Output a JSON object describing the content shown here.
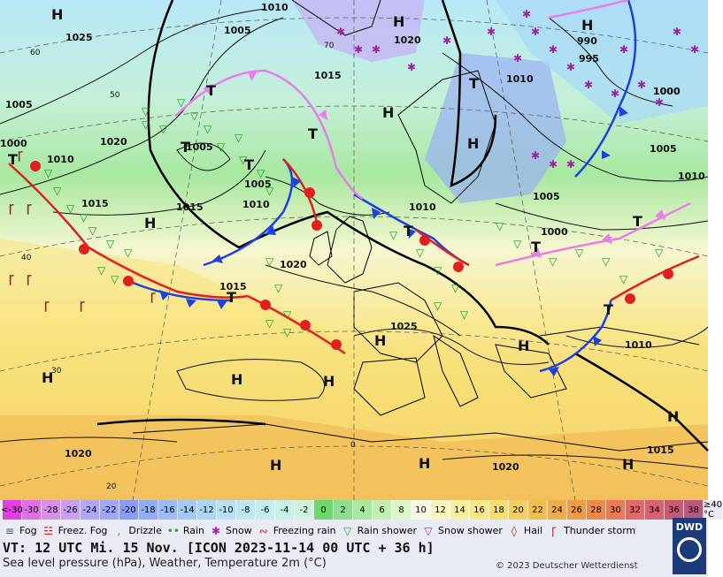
{
  "map": {
    "isobars": [
      {
        "label": "1010",
        "pos": "top"
      },
      {
        "label": "1025",
        "pos": "north-atlantic"
      },
      {
        "label": "1005",
        "pos": "norwegian-sea"
      },
      {
        "label": "1020",
        "pos": "north-sea-north"
      },
      {
        "label": "1015",
        "pos": "scandinavia"
      },
      {
        "label": "1010",
        "pos": "baltic"
      },
      {
        "label": "990",
        "pos": "kola"
      },
      {
        "label": "995",
        "pos": "kola-south"
      },
      {
        "label": "1000",
        "pos": "karelia"
      },
      {
        "label": "1005",
        "pos": "atlantic-west"
      },
      {
        "label": "1000",
        "pos": "atlantic-west-2"
      },
      {
        "label": "1010",
        "pos": "atlantic-west-3"
      },
      {
        "label": "1020",
        "pos": "atlantic-mid"
      },
      {
        "label": "1005",
        "pos": "atlantic-center"
      },
      {
        "label": "1015",
        "pos": "atlantic-sw"
      },
      {
        "label": "1015",
        "pos": "atlantic-s"
      },
      {
        "label": "1005",
        "pos": "irish-sea-w"
      },
      {
        "label": "1010",
        "pos": "ireland"
      },
      {
        "label": "1010",
        "pos": "denmark"
      },
      {
        "label": "1005",
        "pos": "poland"
      },
      {
        "label": "1000",
        "pos": "belarus"
      },
      {
        "label": "1005",
        "pos": "russia"
      },
      {
        "label": "1000",
        "pos": "russia-n"
      },
      {
        "label": "1010",
        "pos": "russia-e"
      },
      {
        "label": "1020",
        "pos": "biscay-w"
      },
      {
        "label": "1015",
        "pos": "biscay"
      },
      {
        "label": "1025",
        "pos": "france"
      },
      {
        "label": "1010",
        "pos": "black-sea"
      },
      {
        "label": "1020",
        "pos": "africa-w"
      },
      {
        "label": "1020",
        "pos": "africa"
      },
      {
        "label": "1015",
        "pos": "africa-e"
      }
    ],
    "pressure_centers": [
      {
        "type": "H"
      },
      {
        "type": "H"
      },
      {
        "type": "H"
      },
      {
        "type": "T"
      },
      {
        "type": "T"
      },
      {
        "type": "T"
      },
      {
        "type": "T"
      },
      {
        "type": "H"
      },
      {
        "type": "H"
      },
      {
        "type": "T"
      },
      {
        "type": "T"
      },
      {
        "type": "H"
      },
      {
        "type": "H"
      },
      {
        "type": "H"
      },
      {
        "type": "H"
      },
      {
        "type": "H"
      },
      {
        "type": "T"
      },
      {
        "type": "T"
      },
      {
        "type": "H"
      },
      {
        "type": "H"
      },
      {
        "type": "H"
      },
      {
        "type": "H"
      },
      {
        "type": "T"
      },
      {
        "type": "H"
      },
      {
        "type": "T"
      },
      {
        "type": "T"
      }
    ],
    "lat_labels": [
      "60",
      "50",
      "40",
      "30",
      "20",
      "70"
    ],
    "lon_labels": [
      "0"
    ]
  },
  "legend": {
    "scale": [
      {
        "label": "<-30",
        "color": "#e040e0"
      },
      {
        "label": "-30",
        "color": "#e070e8"
      },
      {
        "label": "-28",
        "color": "#d890ee"
      },
      {
        "label": "-26",
        "color": "#c8a0f2"
      },
      {
        "label": "-24",
        "color": "#b0a8f5"
      },
      {
        "label": "-22",
        "color": "#9ea8f8"
      },
      {
        "label": "-20",
        "color": "#8a9cf8"
      },
      {
        "label": "-18",
        "color": "#90aef8"
      },
      {
        "label": "-16",
        "color": "#98bdf8"
      },
      {
        "label": "-14",
        "color": "#a2caf8"
      },
      {
        "label": "-12",
        "color": "#acd6f8"
      },
      {
        "label": "-10",
        "color": "#b6e0f8"
      },
      {
        "label": "-8",
        "color": "#bce8f4"
      },
      {
        "label": "-6",
        "color": "#c2eef0"
      },
      {
        "label": "-4",
        "color": "#c8f2e6"
      },
      {
        "label": "-2",
        "color": "#cef4dc"
      },
      {
        "label": "0",
        "color": "#6cd86c"
      },
      {
        "label": "2",
        "color": "#8ce08c"
      },
      {
        "label": "4",
        "color": "#aae8a0"
      },
      {
        "label": "6",
        "color": "#c2f0b0"
      },
      {
        "label": "8",
        "color": "#dcf6c8"
      },
      {
        "label": "10",
        "color": "#fafae4"
      },
      {
        "label": "12",
        "color": "#fbf6c0"
      },
      {
        "label": "14",
        "color": "#faf0a0"
      },
      {
        "label": "16",
        "color": "#f8e888"
      },
      {
        "label": "18",
        "color": "#f6de74"
      },
      {
        "label": "20",
        "color": "#f4d060"
      },
      {
        "label": "22",
        "color": "#f2c050"
      },
      {
        "label": "24",
        "color": "#f0ae4a"
      },
      {
        "label": "26",
        "color": "#ee9c48"
      },
      {
        "label": "28",
        "color": "#ec8a4a"
      },
      {
        "label": "30",
        "color": "#ea7a58"
      },
      {
        "label": "32",
        "color": "#e06a6a"
      },
      {
        "label": "34",
        "color": "#d66272"
      },
      {
        "label": "36",
        "color": "#c85a76"
      },
      {
        "label": "38",
        "color": "#b8587a"
      },
      {
        "label": "≥40 °C",
        "color": "#e8ebf2"
      }
    ],
    "weather": [
      {
        "label": "Fog",
        "icon": "fog-icon",
        "glyph": "≡",
        "color": "#555"
      },
      {
        "label": "Freez. Fog",
        "icon": "freezing-fog-icon",
        "glyph": "☳",
        "color": "#b22"
      },
      {
        "label": "Drizzle",
        "icon": "drizzle-icon",
        "glyph": ",",
        "color": "#2a2"
      },
      {
        "label": "Rain",
        "icon": "rain-icon",
        "glyph": "••",
        "color": "#2a2"
      },
      {
        "label": "Snow",
        "icon": "snow-icon",
        "glyph": "✱",
        "color": "#a2a"
      },
      {
        "label": "Freezing rain",
        "icon": "freezing-rain-icon",
        "glyph": "∾",
        "color": "#b22"
      },
      {
        "label": "Rain shower",
        "icon": "rain-shower-icon",
        "glyph": "▽",
        "color": "#2a2"
      },
      {
        "label": "Snow shower",
        "icon": "snow-shower-icon",
        "glyph": "▽",
        "color": "#a2a"
      },
      {
        "label": "Hail",
        "icon": "hail-icon",
        "glyph": "◊",
        "color": "#a22"
      },
      {
        "label": "Thunder storm",
        "icon": "thunderstorm-icon",
        "glyph": "Ꞅ",
        "color": "#a22"
      }
    ],
    "valid_time": "VT: 12 UTC Mi.  15 Nov. [ICON 2023-11-14  00 UTC + 36 h]",
    "description": "Sea level pressure (hPa), Weather, Temperature 2m (°C)",
    "copyright": "© 2023 Deutscher Wetterdienst",
    "logo": "DWD"
  }
}
